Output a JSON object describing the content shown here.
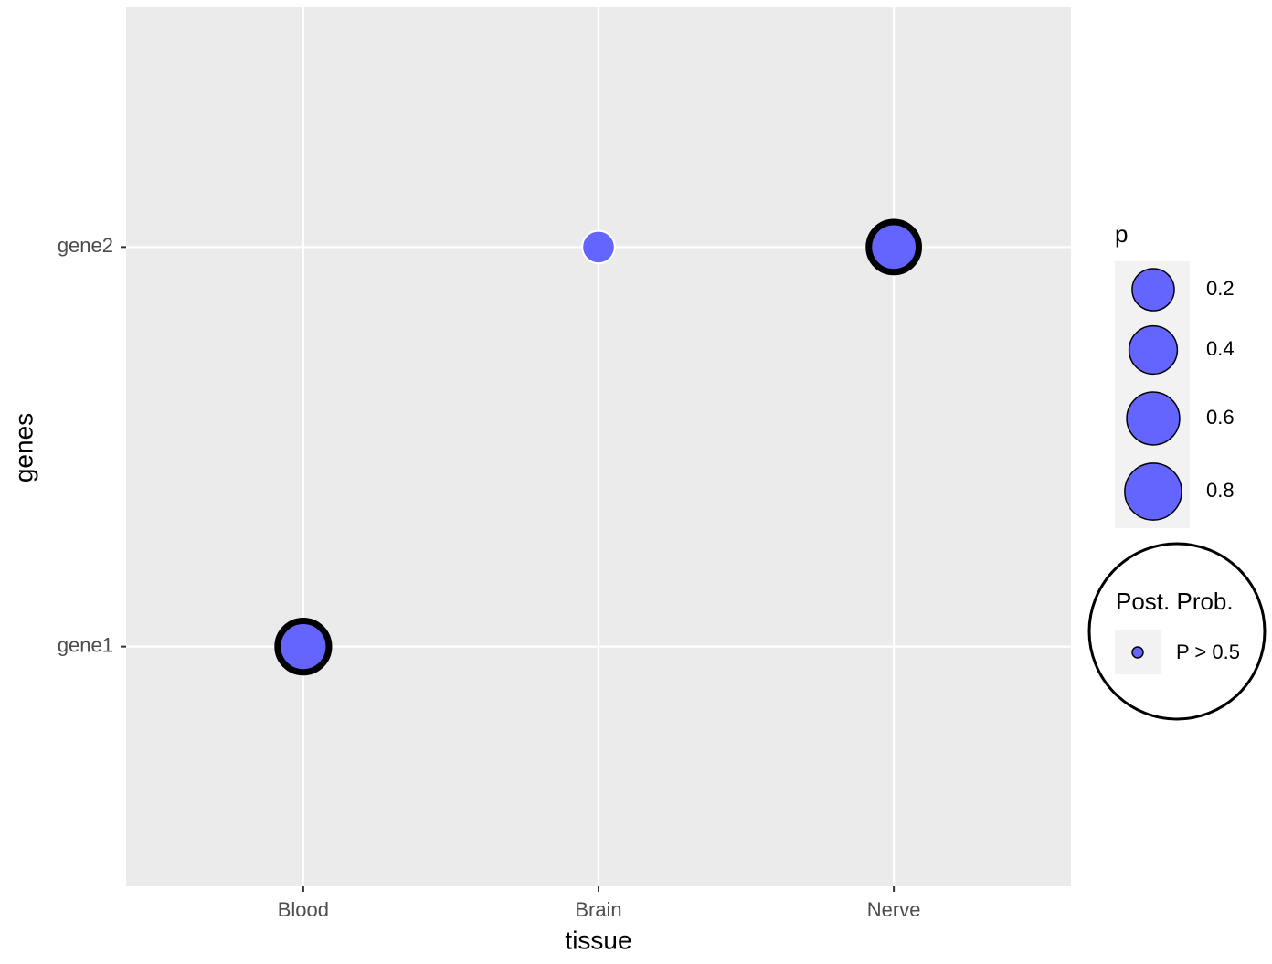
{
  "chart_data": {
    "type": "scatter",
    "x_label": "tissue",
    "y_label": "genes",
    "x_categories": [
      "Blood",
      "Brain",
      "Nerve"
    ],
    "y_categories": [
      "gene1",
      "gene2"
    ],
    "points": [
      {
        "x": "Blood",
        "y": "gene1",
        "p": 0.45,
        "highlight": true
      },
      {
        "x": "Brain",
        "y": "gene2",
        "p": 0.01,
        "highlight": false
      },
      {
        "x": "Nerve",
        "y": "gene2",
        "p": 0.4,
        "highlight": true
      }
    ],
    "color": "#6464ff",
    "grid": true,
    "size_legend": {
      "title": "p",
      "breaks": [
        0.2,
        0.4,
        0.6,
        0.8
      ]
    },
    "highlight_legend": {
      "title": "Post. Prob.",
      "label": "P > 0.5"
    }
  }
}
